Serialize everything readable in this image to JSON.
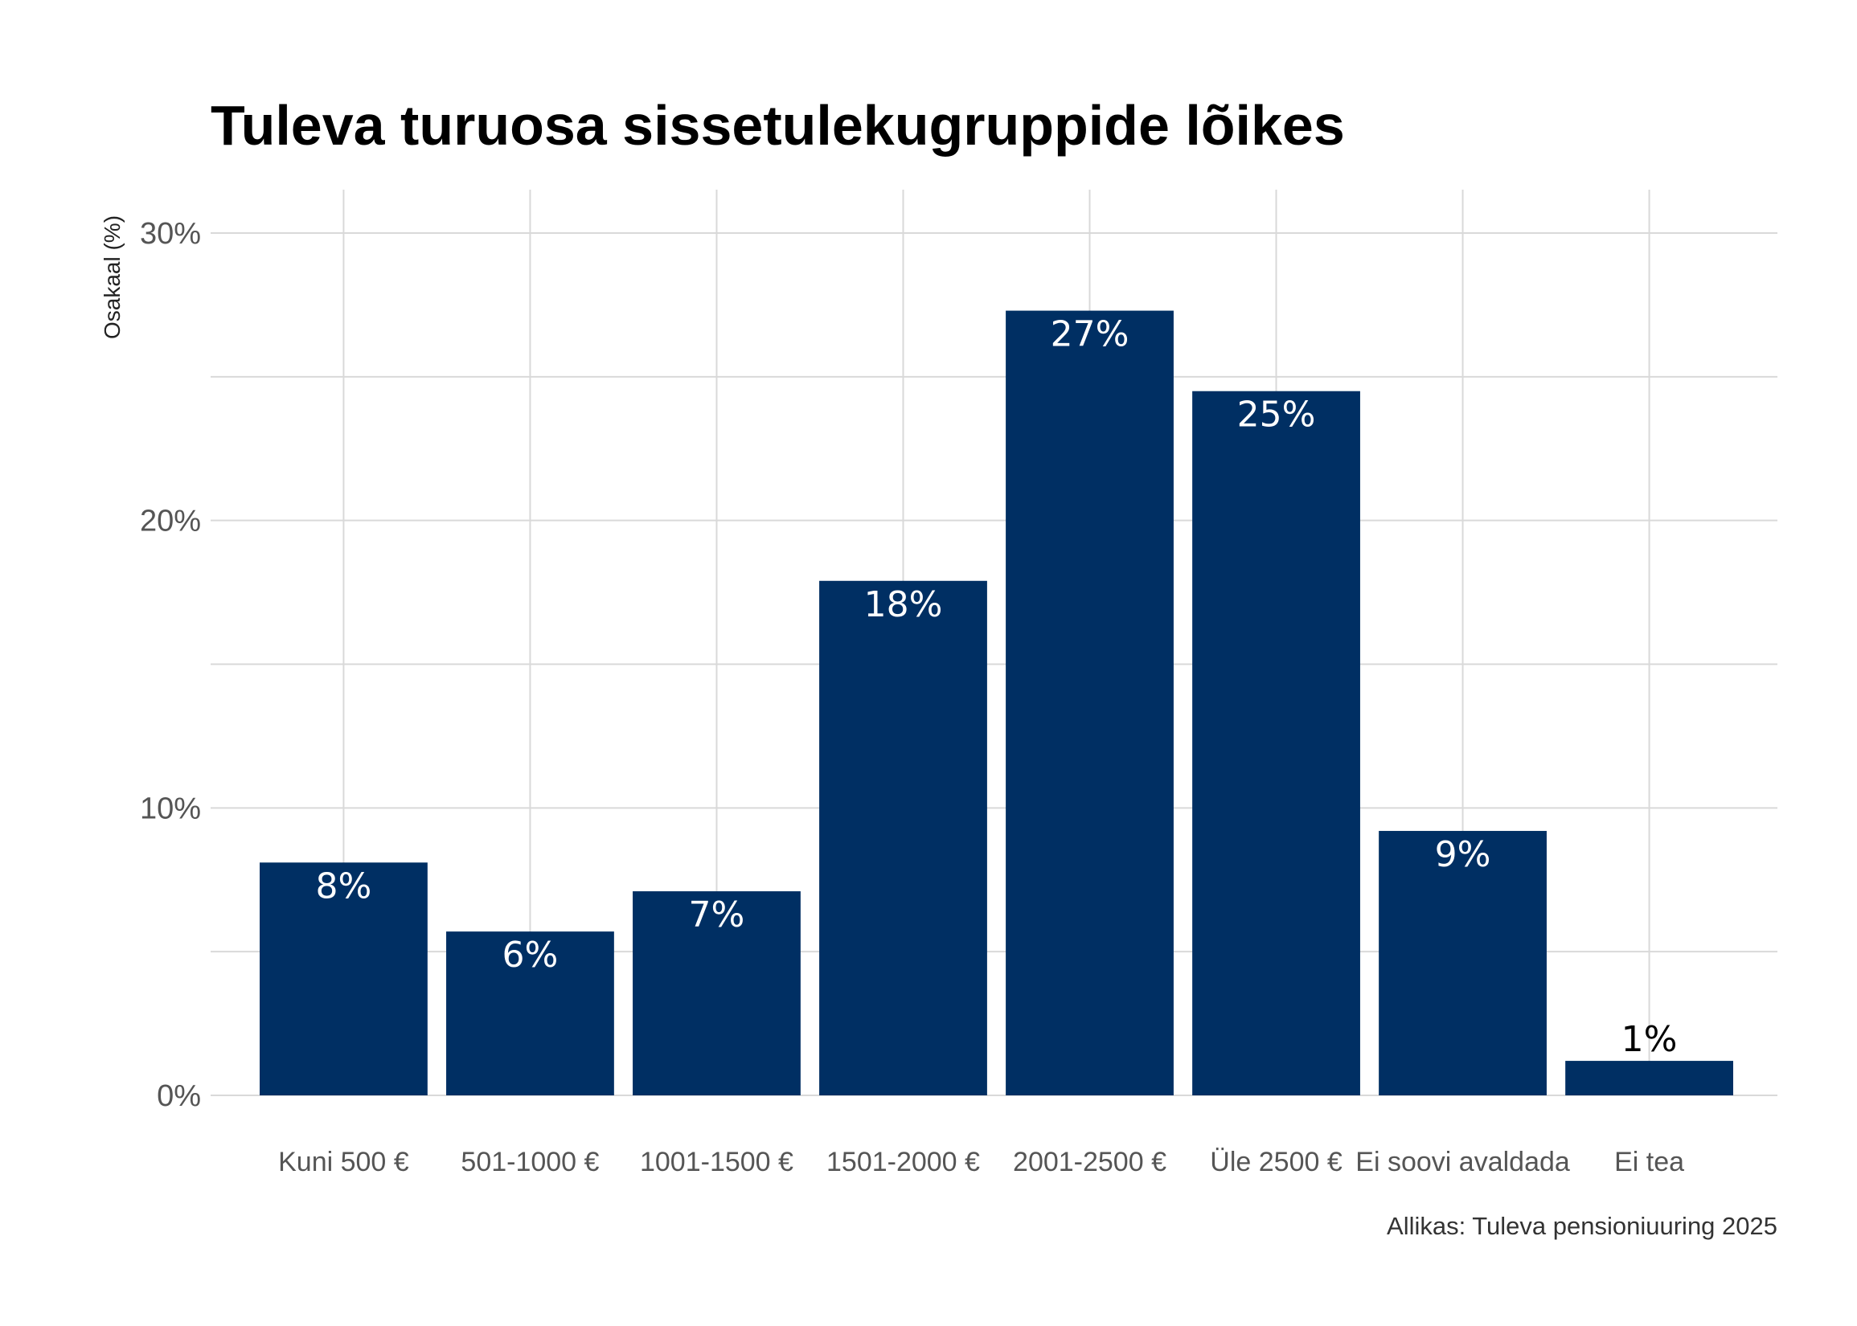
{
  "chart_data": {
    "type": "bar",
    "title": "Tuleva turuosa sissetulekugruppide lõikes",
    "ylabel": "Osakaal (%)",
    "xlabel": "",
    "caption": "Allikas: Tuleva pensioniuuring 2025",
    "categories": [
      "Kuni 500 €",
      "501-1000 €",
      "1001-1500 €",
      "1501-2000 €",
      "2001-2500 €",
      "Üle 2500 €",
      "Ei soovi avaldada",
      "Ei tea"
    ],
    "values": [
      8.1,
      5.7,
      7.1,
      17.9,
      27.3,
      24.5,
      9.2,
      1.2
    ],
    "labels": [
      "8%",
      "6%",
      "7%",
      "18%",
      "27%",
      "25%",
      "9%",
      "1%"
    ],
    "ylim": [
      0,
      30
    ],
    "yticks": [
      0,
      10,
      20,
      30
    ],
    "ytick_labels": [
      "0%",
      "10%",
      "20%",
      "30%"
    ],
    "bar_color": "#002F63",
    "label_color_inside": "#ffffff",
    "label_color_outside": "#000000",
    "grid": true
  }
}
